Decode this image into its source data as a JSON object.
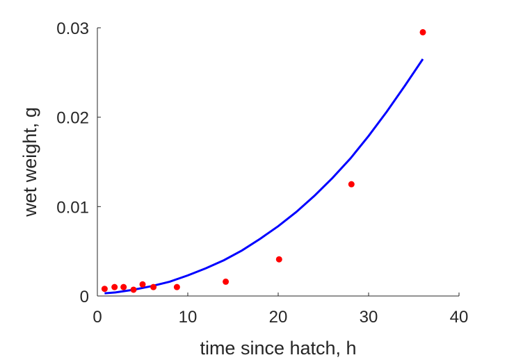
{
  "chart_data": {
    "type": "scatter",
    "xlabel": "time since hatch, h",
    "ylabel": "wet weight, g",
    "xlim": [
      0,
      40
    ],
    "ylim": [
      0,
      0.03
    ],
    "xticks": [
      0,
      10,
      20,
      30,
      40
    ],
    "xtick_labels": [
      "0",
      "10",
      "20",
      "30",
      "40"
    ],
    "yticks": [
      0,
      0.01,
      0.02,
      0.03
    ],
    "ytick_labels": [
      "0",
      "0.01",
      "0.02",
      "0.03"
    ],
    "grid": false,
    "series": [
      {
        "kind": "scatter",
        "color": "#ff0000",
        "x": [
          0.8,
          1.9,
          2.9,
          4.0,
          5.0,
          6.2,
          8.8,
          14.2,
          20.1,
          28.1,
          36.0
        ],
        "y": [
          0.0008,
          0.001,
          0.001,
          0.0007,
          0.0013,
          0.001,
          0.001,
          0.0016,
          0.0041,
          0.0125,
          0.0295
        ]
      },
      {
        "kind": "line",
        "color": "#0000ff",
        "x": [
          0.8,
          2,
          4,
          6,
          8,
          10,
          12,
          14,
          16,
          18,
          20,
          22,
          24,
          26,
          28,
          30,
          32,
          34,
          36
        ],
        "y": [
          0.0003,
          0.0004,
          0.0007,
          0.0011,
          0.0016,
          0.0023,
          0.0031,
          0.004,
          0.0051,
          0.0064,
          0.0078,
          0.0094,
          0.0112,
          0.0132,
          0.0154,
          0.0179,
          0.0206,
          0.0235,
          0.0265
        ]
      }
    ]
  }
}
